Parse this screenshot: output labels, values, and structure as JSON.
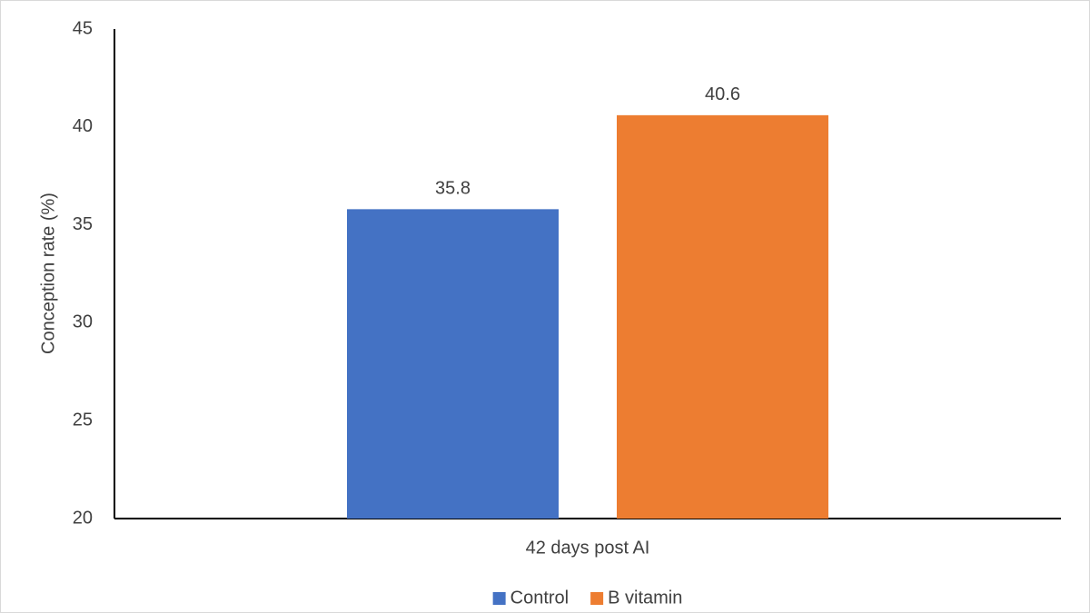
{
  "chart_data": {
    "type": "bar",
    "y_label": "Conception rate (%)",
    "categories": [
      "42 days post AI"
    ],
    "series": [
      {
        "name": "Control",
        "color": "#4472c4",
        "values": [
          35.8
        ]
      },
      {
        "name": "B vitamin",
        "color": "#ed7d31",
        "values": [
          40.6
        ]
      }
    ],
    "ylim": [
      20,
      45
    ],
    "yticks": [
      20,
      25,
      30,
      35,
      40,
      45
    ],
    "grid": false,
    "legend": "bottom"
  }
}
